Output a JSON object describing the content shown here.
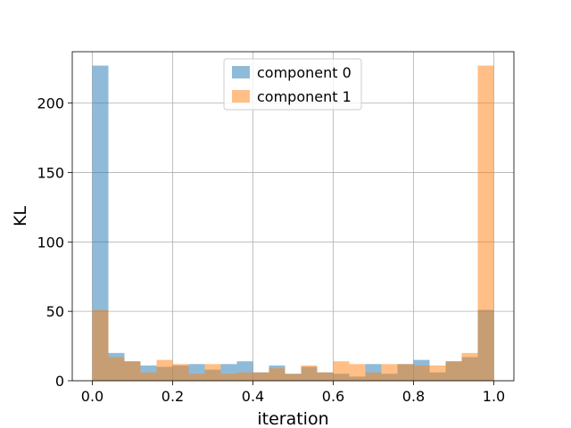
{
  "chart_data": {
    "type": "bar",
    "title": "",
    "xlabel": "iteration",
    "ylabel": "KL",
    "xlim": [
      -0.05,
      1.05
    ],
    "ylim": [
      0,
      237
    ],
    "bin_width": 0.04,
    "xticks": [
      0.0,
      0.2,
      0.4,
      0.6,
      0.8,
      1.0
    ],
    "xtick_labels": [
      "0.0",
      "0.2",
      "0.4",
      "0.6",
      "0.8",
      "1.0"
    ],
    "yticks": [
      0,
      50,
      100,
      150,
      200
    ],
    "ytick_labels": [
      "0",
      "50",
      "100",
      "150",
      "200"
    ],
    "grid": true,
    "legend_position": "top-center",
    "bin_edges": [
      0.0,
      0.04,
      0.08,
      0.12,
      0.16,
      0.2,
      0.24,
      0.28,
      0.32,
      0.36,
      0.4,
      0.44,
      0.48,
      0.52,
      0.56,
      0.6,
      0.64,
      0.68,
      0.72,
      0.76,
      0.8,
      0.84,
      0.88,
      0.92,
      0.96,
      1.0
    ],
    "series": [
      {
        "name": "component 0",
        "color": "#1f77b4",
        "opacity": 0.5,
        "values": [
          227,
          20,
          14,
          11,
          10,
          11,
          12,
          8,
          12,
          14,
          6,
          11,
          5,
          10,
          6,
          5,
          3,
          12,
          5,
          12,
          15,
          6,
          14,
          17,
          51
        ]
      },
      {
        "name": "component 1",
        "color": "#ff7f0e",
        "opacity": 0.5,
        "values": [
          51,
          17,
          14,
          6,
          15,
          12,
          5,
          12,
          5,
          6,
          6,
          9,
          5,
          11,
          6,
          14,
          12,
          6,
          12,
          12,
          11,
          11,
          14,
          20,
          227
        ]
      }
    ]
  }
}
